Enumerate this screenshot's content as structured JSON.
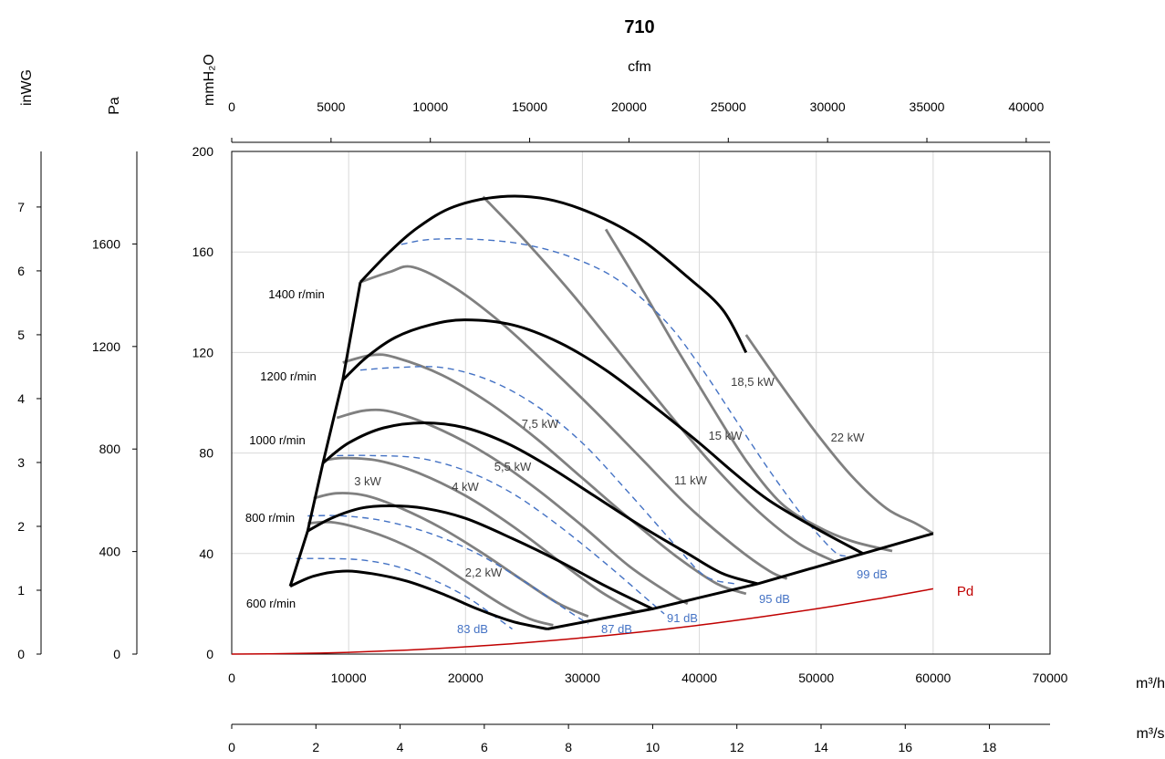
{
  "chart_data": {
    "type": "line",
    "title": "710",
    "x_axes": {
      "flow_m3h": {
        "label": "m³/h",
        "range": [
          0,
          70000
        ],
        "ticks": [
          "0",
          "10000",
          "20000",
          "30000",
          "40000",
          "50000",
          "60000",
          "70000"
        ]
      },
      "flow_cfm": {
        "label": "cfm",
        "range": [
          0,
          41200
        ],
        "ticks": [
          "0",
          "5000",
          "10000",
          "15000",
          "20000",
          "25000",
          "30000",
          "35000",
          "40000"
        ]
      },
      "flow_m3s": {
        "label": "m³/s",
        "range": [
          0,
          19.44
        ],
        "ticks": [
          "0",
          "2",
          "4",
          "6",
          "8",
          "10",
          "12",
          "14",
          "16",
          "18"
        ]
      }
    },
    "y_axes": {
      "mmH2O": {
        "label": "mmH₂O",
        "range": [
          0,
          200
        ],
        "ticks": [
          "0",
          "40",
          "80",
          "120",
          "160",
          "200"
        ]
      },
      "Pa": {
        "label": "Pa",
        "range": [
          0,
          1961
        ],
        "ticks": [
          "0",
          "400",
          "800",
          "1200",
          "1600"
        ]
      },
      "inWG": {
        "label": "inWG",
        "range": [
          0,
          7.87
        ],
        "ticks": [
          "0",
          "1",
          "2",
          "3",
          "4",
          "5",
          "6",
          "7"
        ]
      }
    },
    "grid": true,
    "speed_curves": [
      {
        "name": "1400 r/min",
        "points": [
          [
            11000,
            148
          ],
          [
            13500,
            160
          ],
          [
            16000,
            170
          ],
          [
            19000,
            178
          ],
          [
            23000,
            182
          ],
          [
            27000,
            181
          ],
          [
            31000,
            175
          ],
          [
            35000,
            165
          ],
          [
            39000,
            150
          ],
          [
            42000,
            137
          ],
          [
            44000,
            120
          ]
        ]
      },
      {
        "name": "1200 r/min",
        "points": [
          [
            9500,
            109
          ],
          [
            11500,
            118
          ],
          [
            14000,
            126
          ],
          [
            17000,
            131
          ],
          [
            20000,
            133
          ],
          [
            24000,
            131
          ],
          [
            28000,
            124
          ],
          [
            32000,
            113
          ],
          [
            36000,
            99
          ],
          [
            40000,
            84
          ],
          [
            43000,
            72
          ],
          [
            46000,
            61
          ],
          [
            50000,
            50
          ],
          [
            54000,
            40
          ]
        ]
      },
      {
        "name": "1000 r/min",
        "points": [
          [
            7800,
            76
          ],
          [
            10000,
            84
          ],
          [
            13000,
            90
          ],
          [
            16500,
            92
          ],
          [
            20000,
            90
          ],
          [
            23500,
            84
          ],
          [
            27000,
            75
          ],
          [
            31000,
            63
          ],
          [
            35000,
            51
          ],
          [
            39000,
            40
          ],
          [
            42000,
            32
          ],
          [
            45000,
            28
          ]
        ]
      },
      {
        "name": "800 r/min",
        "points": [
          [
            6500,
            49
          ],
          [
            8500,
            54
          ],
          [
            11000,
            58
          ],
          [
            13500,
            59
          ],
          [
            16500,
            58
          ],
          [
            20000,
            54
          ],
          [
            24000,
            46
          ],
          [
            28000,
            37
          ],
          [
            32000,
            27
          ],
          [
            36000,
            18
          ]
        ]
      },
      {
        "name": "600 r/min",
        "points": [
          [
            5000,
            27
          ],
          [
            7000,
            31
          ],
          [
            9500,
            33
          ],
          [
            12000,
            32
          ],
          [
            15000,
            29
          ],
          [
            18000,
            24
          ],
          [
            21000,
            18
          ],
          [
            24000,
            13
          ],
          [
            27000,
            10
          ]
        ]
      }
    ],
    "system_line": {
      "points": [
        [
          27000,
          10
        ],
        [
          36000,
          18
        ],
        [
          45000,
          28
        ],
        [
          54000,
          40
        ],
        [
          60000,
          48
        ]
      ]
    },
    "surge_line": {
      "points": [
        [
          5000,
          27
        ],
        [
          6500,
          49
        ],
        [
          7800,
          76
        ],
        [
          9500,
          109
        ],
        [
          11000,
          148
        ]
      ]
    },
    "power_curves": [
      {
        "name": "2,2 kW",
        "points": [
          [
            6500,
            52
          ],
          [
            8500,
            52.5
          ],
          [
            11000,
            50
          ],
          [
            14000,
            45
          ],
          [
            17000,
            38
          ],
          [
            20000,
            29
          ],
          [
            23000,
            20
          ],
          [
            25500,
            14
          ],
          [
            27500,
            11.5
          ]
        ]
      },
      {
        "name": "3 kW",
        "points": [
          [
            7000,
            62
          ],
          [
            9000,
            64
          ],
          [
            11500,
            63
          ],
          [
            14500,
            58
          ],
          [
            18000,
            50
          ],
          [
            21500,
            40
          ],
          [
            25000,
            29
          ],
          [
            28000,
            20
          ],
          [
            30500,
            15
          ]
        ]
      },
      {
        "name": "4 kW",
        "points": [
          [
            7800,
            77
          ],
          [
            9500,
            78
          ],
          [
            12500,
            77
          ],
          [
            16000,
            72
          ],
          [
            20000,
            63
          ],
          [
            24000,
            51
          ],
          [
            28000,
            37
          ],
          [
            31500,
            25
          ],
          [
            34500,
            17
          ]
        ]
      },
      {
        "name": "5,5 kW",
        "points": [
          [
            9000,
            94
          ],
          [
            11500,
            97
          ],
          [
            14000,
            96
          ],
          [
            18000,
            89
          ],
          [
            22000,
            79
          ],
          [
            26000,
            66
          ],
          [
            30000,
            51
          ],
          [
            34000,
            35
          ],
          [
            37500,
            24
          ],
          [
            39000,
            20
          ]
        ]
      },
      {
        "name": "7,5 kW",
        "points": [
          [
            9500,
            116
          ],
          [
            12000,
            119
          ],
          [
            14000,
            118
          ],
          [
            18000,
            111
          ],
          [
            22000,
            100
          ],
          [
            26000,
            86
          ],
          [
            30000,
            70
          ],
          [
            34000,
            54
          ],
          [
            38000,
            39
          ],
          [
            41500,
            28
          ],
          [
            44000,
            24
          ]
        ]
      },
      {
        "name": "11 kW",
        "points": [
          [
            11000,
            148
          ],
          [
            13500,
            152
          ],
          [
            15500,
            154
          ],
          [
            19000,
            146
          ],
          [
            23000,
            132
          ],
          [
            27000,
            115
          ],
          [
            31000,
            97
          ],
          [
            35000,
            78
          ],
          [
            39000,
            59
          ],
          [
            43000,
            43
          ],
          [
            46000,
            33
          ],
          [
            47500,
            30
          ]
        ]
      },
      {
        "name": "15 kW",
        "points": [
          [
            21500,
            182
          ],
          [
            25000,
            165
          ],
          [
            29000,
            144
          ],
          [
            33000,
            121
          ],
          [
            37000,
            98
          ],
          [
            41000,
            76
          ],
          [
            45000,
            57
          ],
          [
            48500,
            44
          ],
          [
            51500,
            37
          ]
        ]
      },
      {
        "name": "18,5 kW",
        "points": [
          [
            32000,
            169
          ],
          [
            35000,
            146
          ],
          [
            38000,
            122
          ],
          [
            41000,
            99
          ],
          [
            44000,
            77
          ],
          [
            47000,
            60
          ],
          [
            50000,
            51
          ],
          [
            53000,
            45
          ],
          [
            56500,
            41
          ]
        ]
      },
      {
        "name": "22 kW",
        "points": [
          [
            44000,
            127
          ],
          [
            47000,
            107
          ],
          [
            50000,
            88
          ],
          [
            53000,
            71
          ],
          [
            56000,
            58
          ],
          [
            58500,
            52
          ],
          [
            60000,
            48
          ]
        ]
      }
    ],
    "sound_curves": [
      {
        "name": "83 dB",
        "points": [
          [
            5500,
            38
          ],
          [
            8000,
            38
          ],
          [
            11000,
            37.5
          ],
          [
            14000,
            35
          ],
          [
            17000,
            30
          ],
          [
            20000,
            23
          ],
          [
            22500,
            15
          ],
          [
            24000,
            10
          ]
        ]
      },
      {
        "name": "87 dB",
        "points": [
          [
            6500,
            55
          ],
          [
            9500,
            55
          ],
          [
            13000,
            53
          ],
          [
            17000,
            48
          ],
          [
            21000,
            40
          ],
          [
            25000,
            29
          ],
          [
            28500,
            18
          ],
          [
            30500,
            12
          ]
        ]
      },
      {
        "name": "91 dB",
        "points": [
          [
            9000,
            79
          ],
          [
            12000,
            79
          ],
          [
            16000,
            78
          ],
          [
            20000,
            73
          ],
          [
            24000,
            64
          ],
          [
            28000,
            51
          ],
          [
            32000,
            36
          ],
          [
            35500,
            22
          ],
          [
            37000,
            16
          ]
        ]
      },
      {
        "name": "95 dB",
        "points": [
          [
            11000,
            113
          ],
          [
            14000,
            114
          ],
          [
            18000,
            114
          ],
          [
            22000,
            109
          ],
          [
            26000,
            99
          ],
          [
            30000,
            84
          ],
          [
            34000,
            64
          ],
          [
            38000,
            43
          ],
          [
            40500,
            31
          ],
          [
            43000,
            28
          ]
        ]
      },
      {
        "name": "99 dB",
        "points": [
          [
            14500,
            163
          ],
          [
            17000,
            165
          ],
          [
            21000,
            165
          ],
          [
            25000,
            163
          ],
          [
            29000,
            158
          ],
          [
            33000,
            149
          ],
          [
            37000,
            133
          ],
          [
            40000,
            115
          ],
          [
            43000,
            94
          ],
          [
            46000,
            73
          ],
          [
            49000,
            54
          ],
          [
            51500,
            41
          ],
          [
            52500,
            39
          ]
        ]
      }
    ],
    "pd_curve": {
      "name": "Pd",
      "points": [
        [
          0,
          0
        ],
        [
          5000,
          0.2
        ],
        [
          10000,
          0.7
        ],
        [
          15000,
          1.6
        ],
        [
          20000,
          2.9
        ],
        [
          25000,
          4.5
        ],
        [
          30000,
          6.5
        ],
        [
          35000,
          8.8
        ],
        [
          40000,
          11.5
        ],
        [
          45000,
          14.6
        ],
        [
          50000,
          18
        ],
        [
          55000,
          21.8
        ],
        [
          60000,
          26
        ]
      ]
    },
    "labels": {
      "speeds": [
        "1400 r/min",
        "1200 r/min",
        "1000 r/min",
        "800 r/min",
        "600 r/min"
      ],
      "powers": [
        "2,2 kW",
        "3 kW",
        "4 kW",
        "5,5 kW",
        "7,5 kW",
        "11 kW",
        "15 kW",
        "18,5 kW",
        "22 kW"
      ],
      "sounds": [
        "83 dB",
        "87 dB",
        "91 dB",
        "95 dB",
        "99 dB"
      ],
      "pd": "Pd"
    },
    "colors": {
      "speed": "#000000",
      "power": "#808080",
      "sound": "#4472c4",
      "pd": "#c00000",
      "grid": "#d9d9d9"
    }
  }
}
